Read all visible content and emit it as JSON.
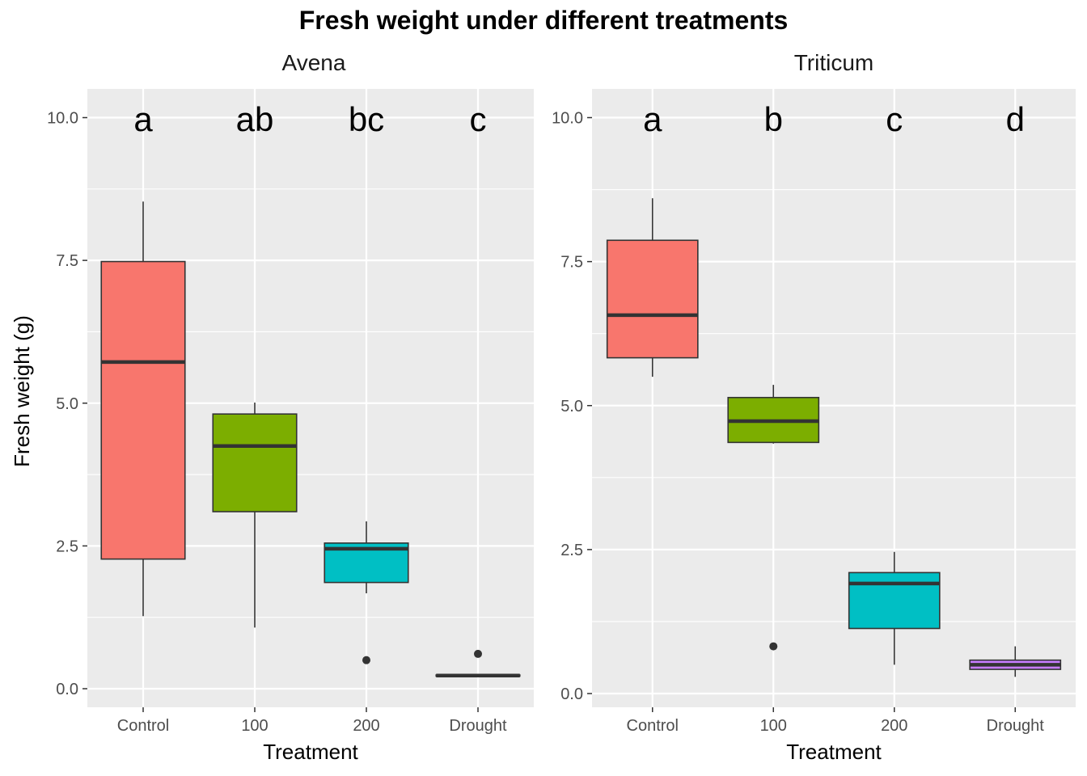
{
  "chart_data": {
    "type": "boxplot",
    "title": "Fresh weight under different treatments",
    "ylabel": "Fresh weight (g)",
    "xlabel": "Treatment",
    "categories": [
      "Control",
      "100",
      "200",
      "Drought"
    ],
    "y_ticks": [
      "0.0",
      "2.5",
      "5.0",
      "7.5",
      "10.0"
    ],
    "colors": {
      "Control": "#F8766D",
      "100": "#7CAE00",
      "200": "#00BFC4",
      "Drought": "#C77CFF",
      "panel_bg": "#EBEBEB",
      "grid": "#FFFFFF"
    },
    "panels": [
      {
        "name": "Avena",
        "ylim": [
          -0.3,
          10.5
        ],
        "letters": [
          "a",
          "ab",
          "bc",
          "c"
        ],
        "boxes": [
          {
            "category": "Control",
            "min": 1.27,
            "q1": 2.27,
            "median": 5.72,
            "q3": 7.48,
            "max": 8.53,
            "outliers": []
          },
          {
            "category": "100",
            "min": 1.07,
            "q1": 3.1,
            "median": 4.25,
            "q3": 4.81,
            "max": 5.01,
            "outliers": []
          },
          {
            "category": "200",
            "min": 1.67,
            "q1": 1.86,
            "median": 2.45,
            "q3": 2.55,
            "max": 2.93,
            "outliers": [
              0.5
            ]
          },
          {
            "category": "Drought",
            "min": 0.22,
            "q1": 0.22,
            "median": 0.23,
            "q3": 0.24,
            "max": 0.24,
            "outliers": [
              0.61
            ]
          }
        ]
      },
      {
        "name": "Triticum",
        "ylim": [
          -0.3,
          10.5
        ],
        "letters": [
          "a",
          "b",
          "c",
          "d"
        ],
        "boxes": [
          {
            "category": "Control",
            "min": 5.5,
            "q1": 5.83,
            "median": 6.57,
            "q3": 7.87,
            "max": 8.6,
            "outliers": []
          },
          {
            "category": "100",
            "min": 4.34,
            "q1": 4.36,
            "median": 4.73,
            "q3": 5.14,
            "max": 5.36,
            "outliers": [
              0.82
            ]
          },
          {
            "category": "200",
            "min": 0.5,
            "q1": 1.13,
            "median": 1.91,
            "q3": 2.1,
            "max": 2.46,
            "outliers": []
          },
          {
            "category": "Drought",
            "min": 0.29,
            "q1": 0.42,
            "median": 0.5,
            "q3": 0.58,
            "max": 0.82,
            "outliers": []
          }
        ]
      }
    ]
  }
}
